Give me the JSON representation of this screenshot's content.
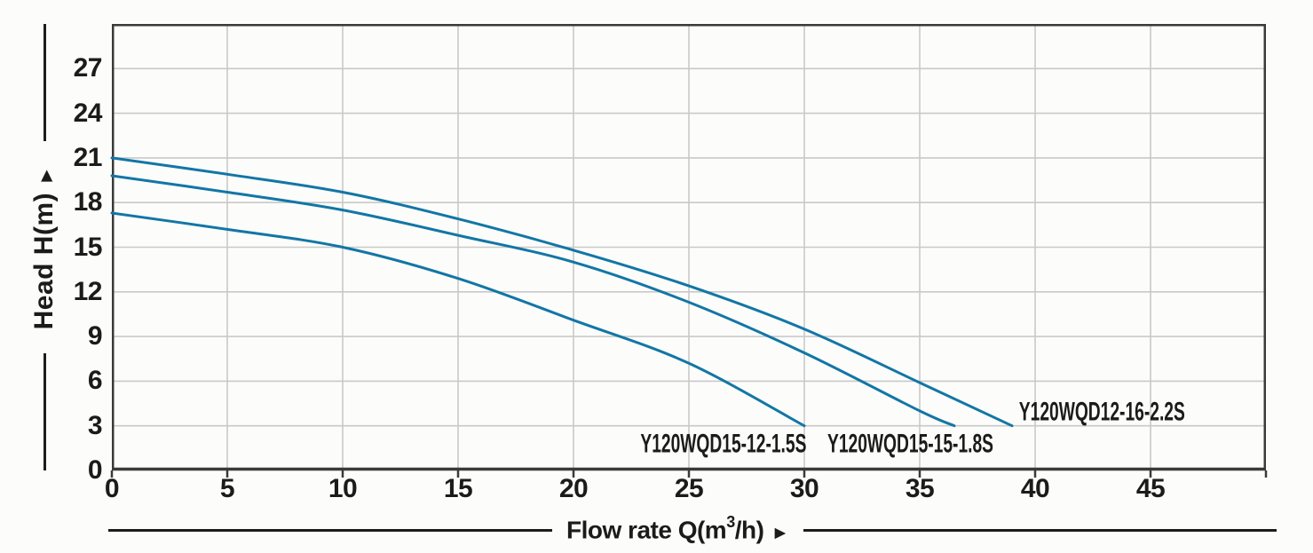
{
  "colors": {
    "curve": "#1276a6",
    "grid": "#c9c9c9",
    "axis": "#3a3a3a",
    "text": "#1b1b1b",
    "background": "#fcfcfa"
  },
  "y_axis": {
    "title": "Head H(m)",
    "arrow": "►"
  },
  "x_axis": {
    "title_pre": "Flow rate Q(m",
    "title_sup": "3",
    "title_post": "/h)",
    "arrow": "►"
  },
  "chart_data": {
    "type": "line",
    "title": "",
    "xlabel": "Flow rate Q(m³/h)",
    "ylabel": "Head H(m)",
    "xlim": [
      0,
      50
    ],
    "ylim": [
      0,
      30
    ],
    "x_ticks": [
      0,
      5,
      10,
      15,
      20,
      25,
      30,
      35,
      40,
      45
    ],
    "y_ticks": [
      0,
      3,
      6,
      9,
      12,
      15,
      18,
      21,
      24,
      27
    ],
    "grid": true,
    "legend_position": "inline-labels",
    "series": [
      {
        "name": "Y120WQD15-12-1.5S",
        "x": [
          0,
          5,
          10,
          15,
          20,
          25,
          30
        ],
        "y": [
          17.3,
          16.2,
          15.0,
          12.9,
          10.1,
          7.2,
          3.0
        ],
        "label_x": 22.9,
        "label_y": 1.7
      },
      {
        "name": "Y120WQD15-15-1.8S",
        "x": [
          0,
          5,
          10,
          15,
          20,
          25,
          30,
          35,
          36.5
        ],
        "y": [
          19.8,
          18.7,
          17.5,
          15.8,
          14.0,
          11.3,
          7.9,
          4.0,
          3.0
        ],
        "label_x": 31.0,
        "label_y": 1.7
      },
      {
        "name": "Y120WQD12-16-2.2S",
        "x": [
          0,
          5,
          10,
          15,
          20,
          25,
          30,
          35,
          39
        ],
        "y": [
          21.0,
          19.9,
          18.7,
          16.9,
          14.8,
          12.4,
          9.5,
          5.9,
          3.0
        ],
        "label_x": 39.3,
        "label_y": 3.85
      }
    ]
  }
}
